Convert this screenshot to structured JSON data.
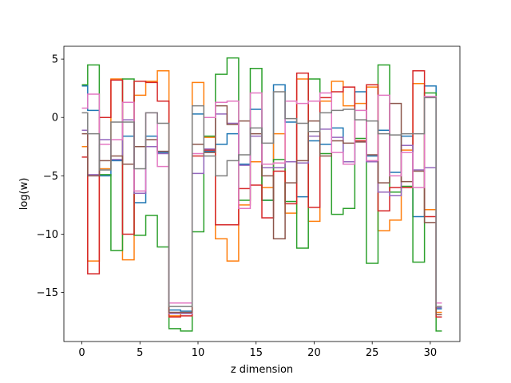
{
  "chart_data": {
    "type": "line",
    "drawstyle": "steps-mid",
    "title": "",
    "xlabel": "z dimension",
    "ylabel": "log(w)",
    "xlim": [
      -1.55,
      32.55
    ],
    "ylim": [
      -19.2,
      6.1
    ],
    "xticks": [
      0,
      5,
      10,
      15,
      20,
      25,
      30
    ],
    "yticks": [
      5,
      0,
      -5,
      -10,
      -15
    ],
    "ytick_labels": [
      "5",
      "0",
      "−5",
      "−10",
      "−15"
    ],
    "grid": false,
    "legend": "none",
    "x": [
      0,
      1,
      2,
      3,
      4,
      5,
      6,
      7,
      8,
      9,
      10,
      11,
      12,
      13,
      14,
      15,
      16,
      17,
      18,
      19,
      20,
      21,
      22,
      23,
      24,
      25,
      26,
      27,
      28,
      29,
      30,
      31
    ],
    "series": [
      {
        "color": "#1f77b4",
        "values": [
          2.7,
          0.6,
          -5.0,
          -3.7,
          -1.6,
          -7.3,
          -1.6,
          -3.0,
          -16.5,
          -16.6,
          0.3,
          -2.9,
          -2.3,
          -1.4,
          -4.0,
          0.7,
          -7.1,
          2.8,
          -0.4,
          -6.8,
          -2.0,
          -2.3,
          -0.9,
          -4.0,
          2.2,
          -3.3,
          -1.1,
          -4.7,
          -1.6,
          -8.5,
          2.7,
          -16.4
        ]
      },
      {
        "color": "#ff7f0e",
        "values": [
          -2.5,
          -12.3,
          -4.4,
          3.3,
          -12.2,
          1.9,
          3.1,
          4.0,
          -17.0,
          -16.8,
          3.0,
          -1.7,
          -10.4,
          -12.3,
          -7.5,
          -3.8,
          -6.0,
          -1.4,
          -8.2,
          3.3,
          -8.9,
          1.4,
          3.1,
          1.0,
          1.2,
          2.6,
          -9.7,
          -8.8,
          -2.8,
          2.9,
          -7.9,
          -16.7
        ]
      },
      {
        "color": "#2ca02c",
        "values": [
          2.8,
          4.5,
          -4.9,
          -11.4,
          3.3,
          -10.1,
          -8.4,
          -11.1,
          -18.1,
          -18.3,
          -9.8,
          -1.6,
          3.7,
          5.1,
          -7.1,
          4.2,
          -7.1,
          -3.6,
          -7.2,
          -11.2,
          3.3,
          -3.1,
          -8.3,
          -7.8,
          -1.8,
          -12.5,
          4.5,
          -6.4,
          -5.9,
          -12.4,
          2.1,
          -18.3
        ]
      },
      {
        "color": "#d62728",
        "values": [
          -3.4,
          -13.4,
          0.0,
          3.2,
          -10.0,
          3.1,
          3.0,
          1.4,
          -17.1,
          -17.0,
          -3.3,
          -2.8,
          -9.2,
          -9.2,
          -6.1,
          -5.8,
          -8.6,
          -4.6,
          -7.4,
          3.8,
          -7.7,
          1.7,
          2.2,
          2.6,
          -2.0,
          2.8,
          -8.0,
          -6.0,
          -6.0,
          4.0,
          -8.5,
          -17.1
        ]
      },
      {
        "color": "#9467bd",
        "values": [
          -1.1,
          -4.9,
          -1.9,
          -3.6,
          -0.2,
          -6.5,
          -2.5,
          -3.1,
          -16.8,
          -16.8,
          -4.8,
          -2.7,
          0.3,
          -0.5,
          -4.1,
          -1.6,
          -4.3,
          -4.3,
          -3.8,
          -3.9,
          -1.6,
          -1.0,
          -1.7,
          -3.8,
          -2.1,
          -3.8,
          -6.4,
          -6.7,
          -2.4,
          -4.5,
          -4.3,
          -16.3
        ]
      },
      {
        "color": "#8c564b",
        "values": [
          -1.4,
          -5.0,
          -3.7,
          -3.3,
          -4.0,
          -2.5,
          -1.9,
          -2.9,
          -16.7,
          -16.7,
          -2.3,
          -3.0,
          1.0,
          -0.6,
          -0.3,
          -1.4,
          -5.0,
          -10.4,
          -5.6,
          -3.7,
          -0.3,
          -3.3,
          -2.0,
          -2.2,
          -2.1,
          -3.2,
          -5.6,
          1.2,
          -5.5,
          -4.6,
          -9.0,
          -16.9
        ]
      },
      {
        "color": "#e377c2",
        "values": [
          0.8,
          2.0,
          -2.3,
          -1.9,
          1.3,
          -6.3,
          0.4,
          -4.2,
          -15.9,
          -15.9,
          -3.1,
          0.0,
          1.3,
          1.4,
          -7.8,
          2.1,
          -4.0,
          -3.9,
          1.4,
          1.2,
          1.4,
          2.1,
          -3.0,
          -4.0,
          0.6,
          -3.7,
          1.9,
          -5.0,
          -3.0,
          -6.0,
          1.8,
          -15.9
        ]
      },
      {
        "color": "#7f7f7f",
        "values": [
          0.4,
          -1.4,
          -4.5,
          -0.4,
          -0.4,
          -4.4,
          0.4,
          -0.5,
          -16.2,
          -16.2,
          1.0,
          -3.3,
          -5.0,
          -3.7,
          -3.2,
          -0.9,
          -2.2,
          2.2,
          -0.1,
          -0.5,
          -1.2,
          0.4,
          0.6,
          0.7,
          -0.2,
          -0.3,
          -1.4,
          -1.5,
          -1.4,
          -1.4,
          1.7,
          -16.2
        ]
      }
    ]
  }
}
